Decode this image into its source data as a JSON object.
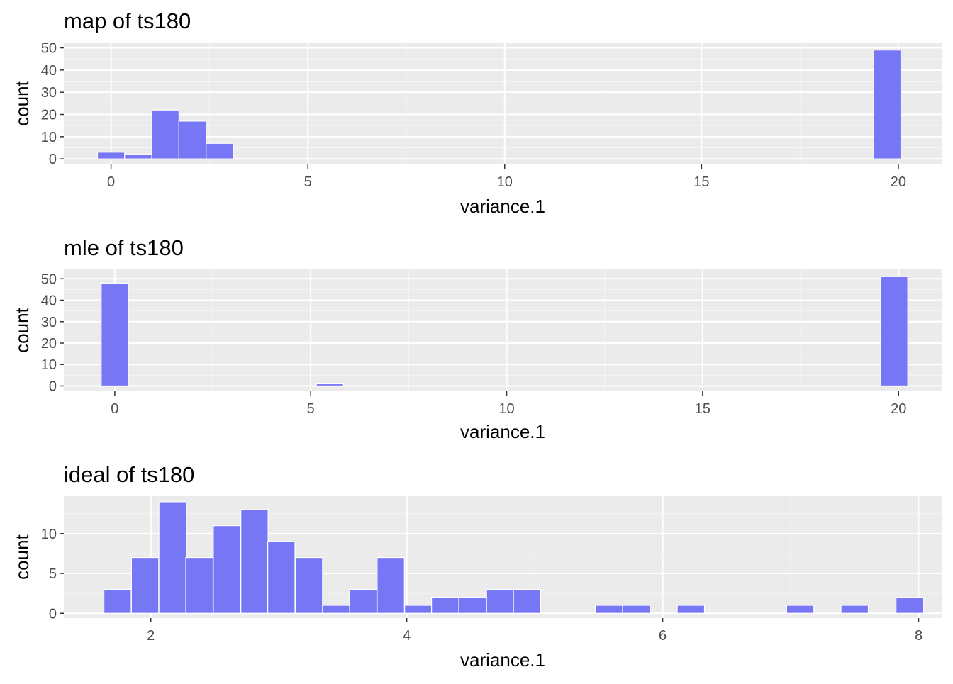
{
  "chart_data": [
    {
      "type": "bar",
      "title": "map of ts180",
      "xlabel": "variance.1",
      "ylabel": "count",
      "xlim": [
        -1.2,
        21.1
      ],
      "ylim": [
        -2.5,
        52.4
      ],
      "x_ticks": [
        0,
        5,
        10,
        15,
        20
      ],
      "x_tick_labels": [
        "0",
        "5",
        "10",
        "15",
        "20"
      ],
      "y_ticks": [
        0,
        10,
        20,
        30,
        40,
        50
      ],
      "y_tick_labels": [
        "0",
        "10",
        "20",
        "30",
        "40",
        "50"
      ],
      "bin_width": 0.69,
      "bins": [
        {
          "x": 0.0,
          "count": 3
        },
        {
          "x": 0.69,
          "count": 2
        },
        {
          "x": 1.38,
          "count": 22
        },
        {
          "x": 2.07,
          "count": 17
        },
        {
          "x": 2.76,
          "count": 7
        },
        {
          "x": 19.72,
          "count": 49
        }
      ],
      "fill": "#7777f6",
      "grid": true
    },
    {
      "type": "bar",
      "title": "mle of ts180",
      "xlabel": "variance.1",
      "ylabel": "count",
      "xlim": [
        -1.3,
        21.1
      ],
      "ylim": [
        -2.5,
        54.4
      ],
      "x_ticks": [
        0,
        5,
        10,
        15,
        20
      ],
      "x_tick_labels": [
        "0",
        "5",
        "10",
        "15",
        "20"
      ],
      "y_ticks": [
        0,
        10,
        20,
        30,
        40,
        50
      ],
      "y_tick_labels": [
        "0",
        "10",
        "20",
        "30",
        "40",
        "50"
      ],
      "bin_width": 0.69,
      "bins": [
        {
          "x": 0.0,
          "count": 48
        },
        {
          "x": 5.49,
          "count": 1
        },
        {
          "x": 19.89,
          "count": 51
        }
      ],
      "fill": "#7777f6",
      "grid": true
    },
    {
      "type": "bar",
      "title": "ideal of ts180",
      "xlabel": "variance.1",
      "ylabel": "count",
      "xlim": [
        1.32,
        8.18
      ],
      "ylim": [
        -0.6,
        14.7
      ],
      "x_ticks": [
        2,
        4,
        6,
        8
      ],
      "x_tick_labels": [
        "2",
        "4",
        "6",
        "8"
      ],
      "y_ticks": [
        0,
        5,
        10
      ],
      "y_tick_labels": [
        "0",
        "5",
        "10"
      ],
      "bin_width": 0.213,
      "bins": [
        {
          "x": 1.74,
          "count": 3
        },
        {
          "x": 1.955,
          "count": 7
        },
        {
          "x": 2.17,
          "count": 14
        },
        {
          "x": 2.38,
          "count": 7
        },
        {
          "x": 2.595,
          "count": 11
        },
        {
          "x": 2.81,
          "count": 13
        },
        {
          "x": 3.02,
          "count": 9
        },
        {
          "x": 3.235,
          "count": 7
        },
        {
          "x": 3.45,
          "count": 1
        },
        {
          "x": 3.66,
          "count": 3
        },
        {
          "x": 3.875,
          "count": 7
        },
        {
          "x": 4.09,
          "count": 1
        },
        {
          "x": 4.3,
          "count": 2
        },
        {
          "x": 4.515,
          "count": 2
        },
        {
          "x": 4.73,
          "count": 3
        },
        {
          "x": 4.94,
          "count": 3
        },
        {
          "x": 5.58,
          "count": 1
        },
        {
          "x": 5.795,
          "count": 1
        },
        {
          "x": 6.22,
          "count": 1
        },
        {
          "x": 7.075,
          "count": 1
        },
        {
          "x": 7.5,
          "count": 1
        },
        {
          "x": 7.93,
          "count": 2
        }
      ],
      "fill": "#7777f6",
      "grid": true
    }
  ]
}
